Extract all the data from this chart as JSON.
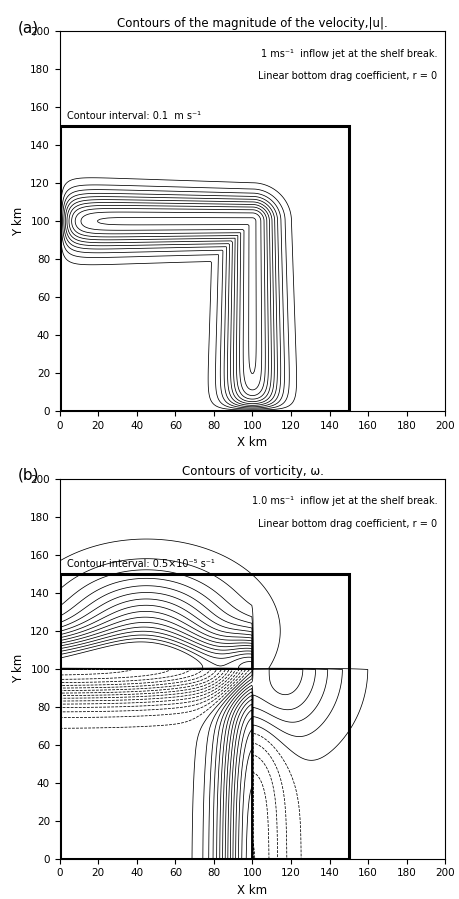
{
  "fig_width": 4.59,
  "fig_height": 8.99,
  "dpi": 100,
  "title_a": "Contours of the magnitude of the velocity,|u|.",
  "title_b": "Contours of vorticity, ω.",
  "xlabel": "X km",
  "ylabel": "Y km",
  "xlim": [
    0,
    200
  ],
  "ylim": [
    0,
    200
  ],
  "xticks": [
    0,
    20,
    40,
    60,
    80,
    100,
    120,
    140,
    160,
    180,
    200
  ],
  "yticks": [
    0,
    20,
    40,
    60,
    80,
    100,
    120,
    140,
    160,
    180,
    200
  ],
  "annotation_a_line1": "1 ms⁻¹  inflow jet at the shelf break.",
  "annotation_a_line2": "Linear bottom drag coefficient, r = 0",
  "annotation_b_line1": "1.0 ms⁻¹  inflow jet at the shelf break.",
  "annotation_b_line2": "Linear bottom drag coefficient, r = 0",
  "contour_interval_a": "Contour interval: 0.1  m s⁻¹",
  "contour_interval_b": "Contour interval: 0.5×10⁻⁵ s⁻¹",
  "shelf_x": 100,
  "shelf_y": 100,
  "domain_x_max": 150,
  "domain_y_max": 150,
  "label_a": "(a)",
  "label_b": "(b)"
}
